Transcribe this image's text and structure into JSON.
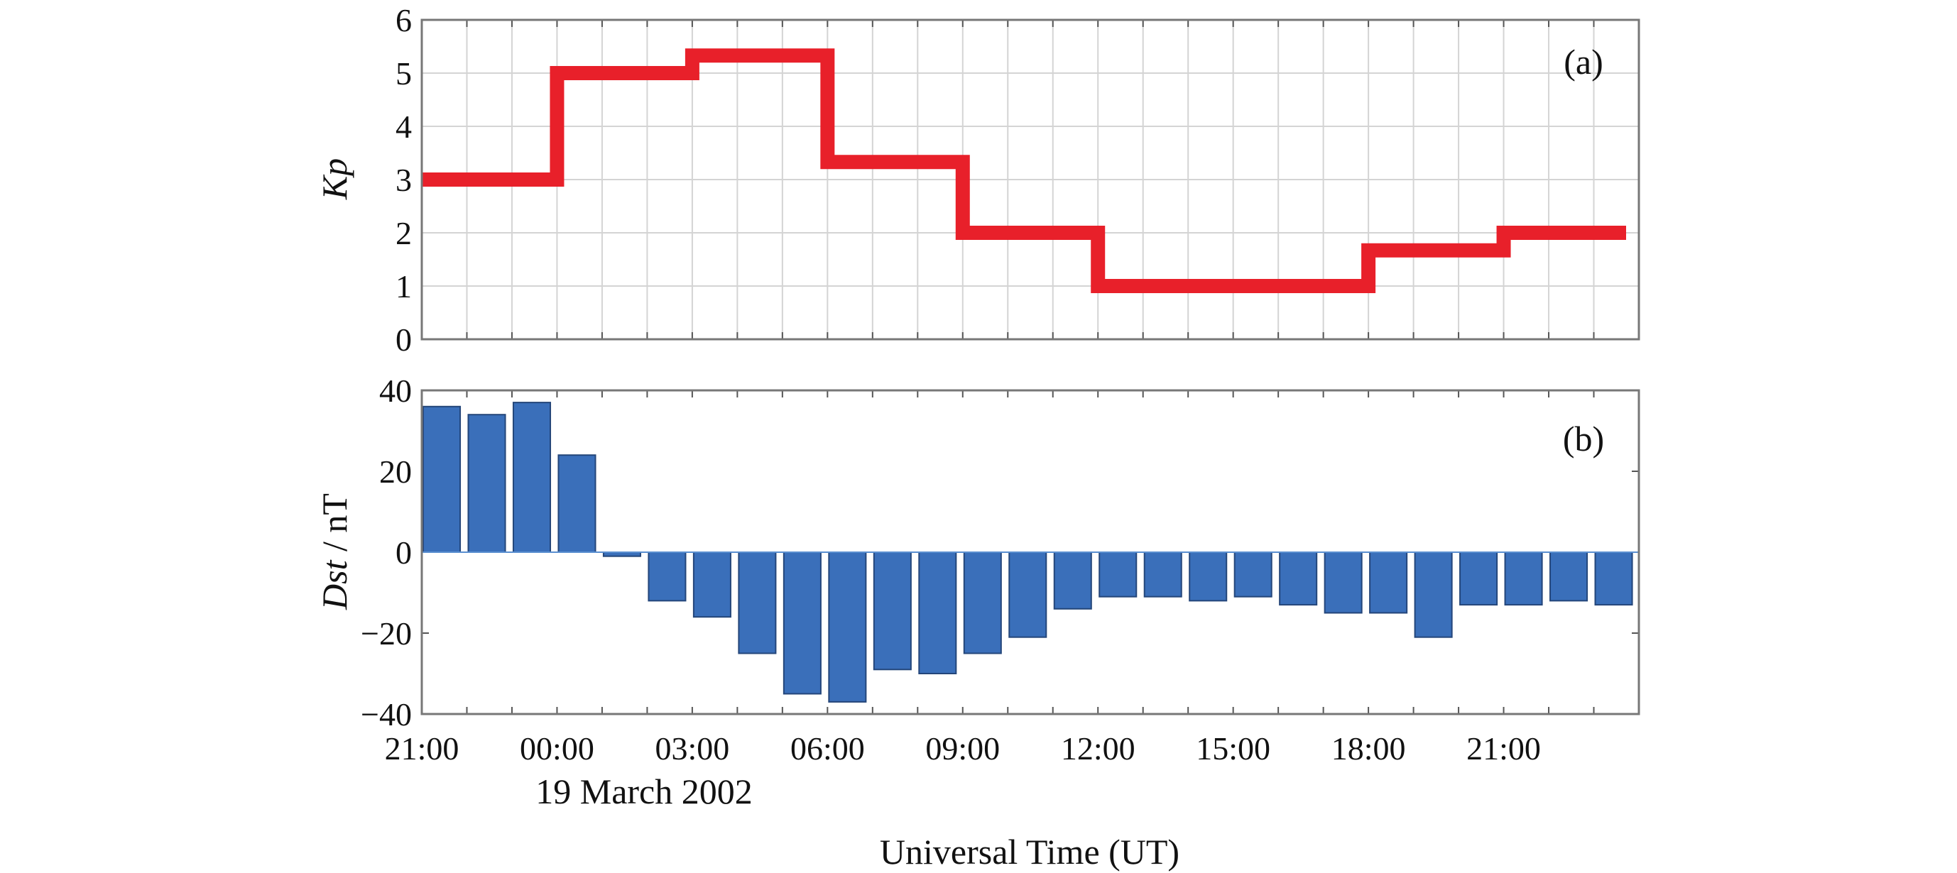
{
  "chart_data": [
    {
      "type": "line",
      "step": true,
      "panel_label": "(a)",
      "ylabel_italic": "Kp",
      "ylabel_rest": "",
      "ylim": [
        0,
        6
      ],
      "yticks": [
        0,
        1,
        2,
        3,
        4,
        5,
        6
      ],
      "xlim_hours": [
        21,
        48
      ],
      "grid": true,
      "series": [
        {
          "name": "Kp",
          "color": "#e8202a",
          "segments": [
            {
              "start": 21,
              "end": 24,
              "value": 3
            },
            {
              "start": 24,
              "end": 27,
              "value": 5
            },
            {
              "start": 27,
              "end": 30,
              "value": 5.33
            },
            {
              "start": 30,
              "end": 33,
              "value": 3.33
            },
            {
              "start": 33,
              "end": 36,
              "value": 2
            },
            {
              "start": 36,
              "end": 39,
              "value": 1
            },
            {
              "start": 39,
              "end": 42,
              "value": 1
            },
            {
              "start": 42,
              "end": 45,
              "value": 1.67
            },
            {
              "start": 45,
              "end": 48,
              "value": 2
            }
          ]
        }
      ]
    },
    {
      "type": "bar",
      "panel_label": "(b)",
      "ylabel_italic": "Dst",
      "ylabel_rest": " / nT",
      "ylim": [
        -40,
        40
      ],
      "yticks": [
        -40,
        -20,
        0,
        20,
        40
      ],
      "ytick_labels": [
        "−40",
        "−20",
        "0",
        "20",
        "40"
      ],
      "xlim_hours": [
        21,
        48
      ],
      "grid": false,
      "color": "#3a6fba",
      "bar_start_hour": 21,
      "values": [
        36,
        34,
        37,
        24,
        -1,
        -12,
        -16,
        -25,
        -35,
        -37,
        -29,
        -30,
        -25,
        -21,
        -14,
        -11,
        -11,
        -12,
        -11,
        -13,
        -15,
        -15,
        -21,
        -13,
        -13,
        -12,
        -13
      ]
    }
  ],
  "x_axis": {
    "tick_hours": [
      21,
      24,
      27,
      30,
      33,
      36,
      39,
      42,
      45
    ],
    "tick_labels": [
      "21:00",
      "00:00",
      "03:00",
      "06:00",
      "09:00",
      "12:00",
      "15:00",
      "18:00",
      "21:00"
    ],
    "date_label": "19 March 2002",
    "xlabel": "Universal Time (UT)"
  }
}
